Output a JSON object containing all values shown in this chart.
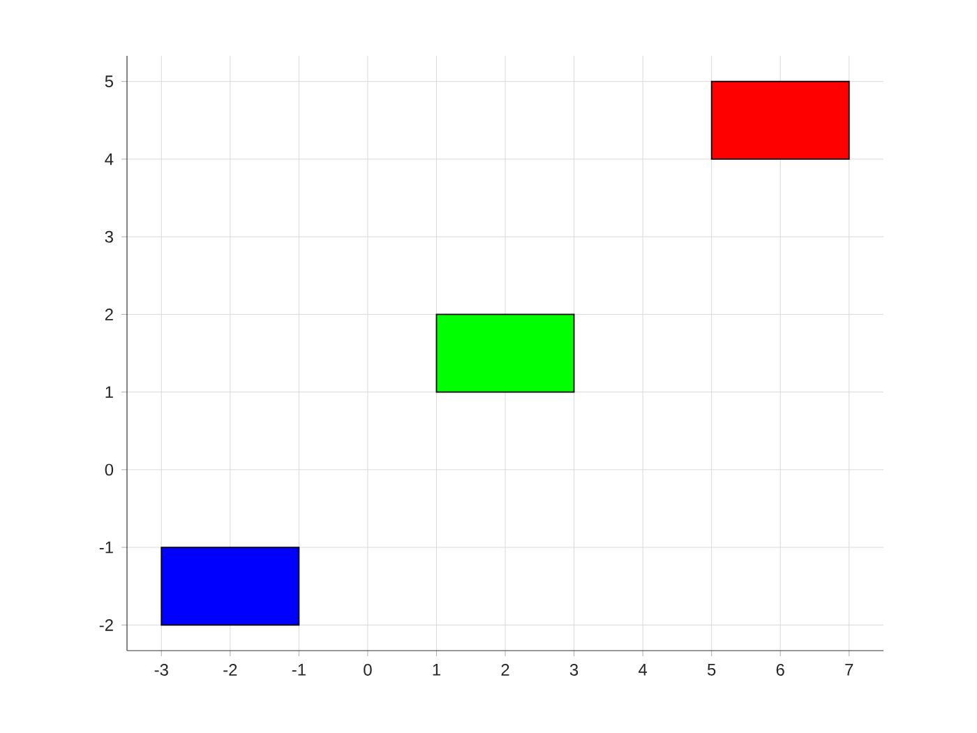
{
  "chart_data": {
    "type": "bar",
    "x": [
      -2,
      2,
      6
    ],
    "base": [
      -2,
      1,
      4
    ],
    "values": [
      1,
      1,
      1
    ],
    "colors": [
      "#0000ff",
      "#00ff00",
      "#ff0000"
    ],
    "xlim": [
      -3.5,
      7.5
    ],
    "ylim": [
      -2.33,
      5.33
    ],
    "xticks": [
      -3,
      -2,
      -1,
      0,
      1,
      2,
      3,
      4,
      5,
      6,
      7
    ],
    "yticks": [
      -2,
      -1,
      0,
      1,
      2,
      3,
      4,
      5
    ],
    "grid": true
  }
}
